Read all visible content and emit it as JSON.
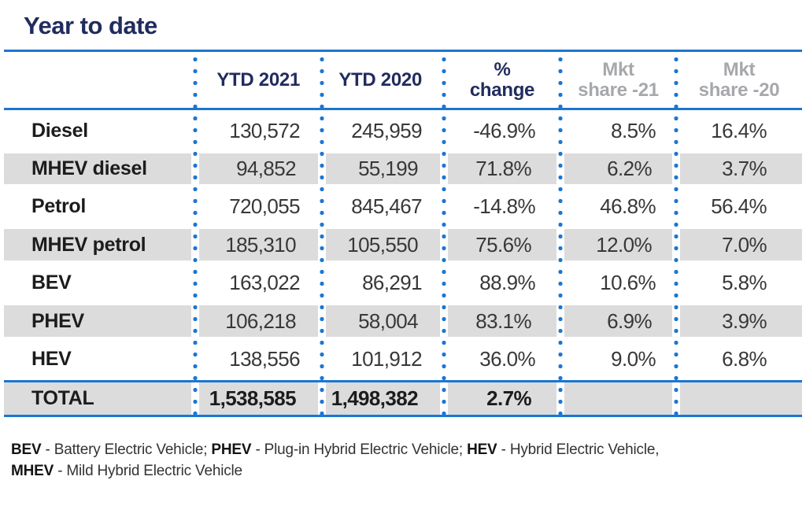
{
  "title": "Year to date",
  "colors": {
    "accent_blue": "#1c76d2",
    "navy_text": "#212c5e",
    "muted_header_gray": "#a6a8ab",
    "stripe_gray": "#dcdcdc"
  },
  "chart_data": {
    "type": "table",
    "title": "Year to date",
    "columns": [
      "",
      "YTD 2021",
      "YTD 2020",
      "% change",
      "Mkt share -21",
      "Mkt share -20"
    ],
    "header": {
      "ytd2021": "YTD 2021",
      "ytd2020": "YTD 2020",
      "pct_l1": "%",
      "pct_l2": "change",
      "mkt21_l1": "Mkt",
      "mkt21_l2": "share -21",
      "mkt20_l1": "Mkt",
      "mkt20_l2": "share -20"
    },
    "rows": [
      {
        "label": "Diesel",
        "ytd2021": "130,572",
        "ytd2020": "245,959",
        "pct_change": "-46.9%",
        "mkt_share_21": "8.5%",
        "mkt_share_20": "16.4%"
      },
      {
        "label": "MHEV diesel",
        "ytd2021": "94,852",
        "ytd2020": "55,199",
        "pct_change": "71.8%",
        "mkt_share_21": "6.2%",
        "mkt_share_20": "3.7%"
      },
      {
        "label": "Petrol",
        "ytd2021": "720,055",
        "ytd2020": "845,467",
        "pct_change": "-14.8%",
        "mkt_share_21": "46.8%",
        "mkt_share_20": "56.4%"
      },
      {
        "label": "MHEV petrol",
        "ytd2021": "185,310",
        "ytd2020": "105,550",
        "pct_change": "75.6%",
        "mkt_share_21": "12.0%",
        "mkt_share_20": "7.0%"
      },
      {
        "label": "BEV",
        "ytd2021": "163,022",
        "ytd2020": "86,291",
        "pct_change": "88.9%",
        "mkt_share_21": "10.6%",
        "mkt_share_20": "5.8%"
      },
      {
        "label": "PHEV",
        "ytd2021": "106,218",
        "ytd2020": "58,004",
        "pct_change": "83.1%",
        "mkt_share_21": "6.9%",
        "mkt_share_20": "3.9%"
      },
      {
        "label": "HEV",
        "ytd2021": "138,556",
        "ytd2020": "101,912",
        "pct_change": "36.0%",
        "mkt_share_21": "9.0%",
        "mkt_share_20": "6.8%"
      }
    ],
    "total": {
      "label": "TOTAL",
      "ytd2021": "1,538,585",
      "ytd2020": "1,498,382",
      "pct_change": "2.7%",
      "mkt_share_21": "",
      "mkt_share_20": ""
    }
  },
  "footnote": {
    "l1b1": "BEV",
    "l1t1": " - Battery Electric Vehicle; ",
    "l1b2": "PHEV",
    "l1t2": " - Plug-in Hybrid Electric Vehicle; ",
    "l1b3": "HEV",
    "l1t3": " - Hybrid Electric Vehicle,",
    "l2b1": "MHEV",
    "l2t1": " - Mild Hybrid Electric Vehicle"
  }
}
